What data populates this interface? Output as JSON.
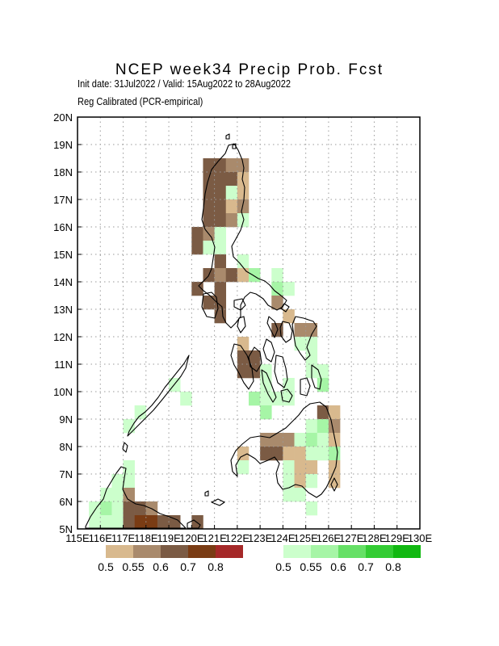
{
  "title": "NCEP  week34  Precip  Prob.  Fcst",
  "subtitle1": "Init date: 31Jul2022 / Valid: 15Aug2022 to 28Aug2022",
  "subtitle2": "Reg Calibrated (PCR-empirical)",
  "axes": {
    "lon_labels": [
      "115E",
      "116E",
      "117E",
      "118E",
      "119E",
      "120E",
      "121E",
      "122E",
      "123E",
      "124E",
      "125E",
      "126E",
      "127E",
      "128E",
      "129E",
      "130E"
    ],
    "lat_labels": [
      "5N",
      "6N",
      "7N",
      "8N",
      "9N",
      "10N",
      "11N",
      "12N",
      "13N",
      "14N",
      "15N",
      "16N",
      "17N",
      "18N",
      "19N",
      "20N"
    ],
    "lon_range": [
      115,
      130
    ],
    "lat_range": [
      5,
      20
    ],
    "grid": "dotted"
  },
  "legend": {
    "dry": {
      "colors": [
        "#d8b98e",
        "#a98a6c",
        "#7b5b44",
        "#7a3c14",
        "#a52828"
      ],
      "labels": [
        "0.5",
        "0.55",
        "0.6",
        "0.7",
        "0.8"
      ]
    },
    "wet": {
      "colors": [
        "#ccffcc",
        "#a6f5a6",
        "#66e066",
        "#33cc33",
        "#11b811"
      ],
      "labels": [
        "0.5",
        "0.55",
        "0.6",
        "0.7",
        "0.8"
      ]
    }
  },
  "chart_data": {
    "type": "heatmap",
    "cell_size_deg": 0.5,
    "categories_note": "d1-d4 below normal prob bins, w1-w3 above normal prob bins",
    "cells": [
      {
        "lon": 120.5,
        "lat": 18.0,
        "c": "d3"
      },
      {
        "lon": 121.0,
        "lat": 18.0,
        "c": "d3"
      },
      {
        "lon": 121.5,
        "lat": 18.0,
        "c": "d2"
      },
      {
        "lon": 122.0,
        "lat": 18.0,
        "c": "d2"
      },
      {
        "lon": 120.5,
        "lat": 17.5,
        "c": "d3"
      },
      {
        "lon": 121.0,
        "lat": 17.5,
        "c": "d3"
      },
      {
        "lon": 121.5,
        "lat": 17.5,
        "c": "d3"
      },
      {
        "lon": 122.0,
        "lat": 17.5,
        "c": "d1"
      },
      {
        "lon": 120.5,
        "lat": 17.0,
        "c": "d3"
      },
      {
        "lon": 121.0,
        "lat": 17.0,
        "c": "d3"
      },
      {
        "lon": 121.5,
        "lat": 17.0,
        "c": "w1"
      },
      {
        "lon": 122.0,
        "lat": 17.0,
        "c": "d1"
      },
      {
        "lon": 120.5,
        "lat": 16.5,
        "c": "d3"
      },
      {
        "lon": 121.0,
        "lat": 16.5,
        "c": "d3"
      },
      {
        "lon": 121.5,
        "lat": 16.5,
        "c": "d1"
      },
      {
        "lon": 122.0,
        "lat": 16.5,
        "c": "d2"
      },
      {
        "lon": 120.5,
        "lat": 16.0,
        "c": "d3"
      },
      {
        "lon": 121.0,
        "lat": 16.0,
        "c": "d3"
      },
      {
        "lon": 121.5,
        "lat": 16.0,
        "c": "d2"
      },
      {
        "lon": 122.0,
        "lat": 16.0,
        "c": "w1"
      },
      {
        "lon": 120.0,
        "lat": 15.5,
        "c": "d3"
      },
      {
        "lon": 120.5,
        "lat": 15.5,
        "c": "d2"
      },
      {
        "lon": 121.0,
        "lat": 15.5,
        "c": "w1"
      },
      {
        "lon": 120.0,
        "lat": 15.0,
        "c": "d3"
      },
      {
        "lon": 120.5,
        "lat": 15.0,
        "c": "w1"
      },
      {
        "lon": 121.0,
        "lat": 15.0,
        "c": "w1"
      },
      {
        "lon": 121.0,
        "lat": 14.5,
        "c": "d3"
      },
      {
        "lon": 122.0,
        "lat": 14.5,
        "c": "w1"
      },
      {
        "lon": 120.5,
        "lat": 14.0,
        "c": "d3"
      },
      {
        "lon": 121.0,
        "lat": 14.0,
        "c": "d2"
      },
      {
        "lon": 121.5,
        "lat": 14.0,
        "c": "d3"
      },
      {
        "lon": 122.0,
        "lat": 14.0,
        "c": "d1"
      },
      {
        "lon": 122.5,
        "lat": 14.0,
        "c": "w2"
      },
      {
        "lon": 123.5,
        "lat": 14.0,
        "c": "w1"
      },
      {
        "lon": 120.0,
        "lat": 13.5,
        "c": "d3"
      },
      {
        "lon": 121.0,
        "lat": 13.5,
        "c": "d3"
      },
      {
        "lon": 123.5,
        "lat": 13.5,
        "c": "w2"
      },
      {
        "lon": 124.0,
        "lat": 13.5,
        "c": "w1"
      },
      {
        "lon": 120.5,
        "lat": 13.0,
        "c": "d3"
      },
      {
        "lon": 121.0,
        "lat": 13.0,
        "c": "d3"
      },
      {
        "lon": 123.5,
        "lat": 13.0,
        "c": "d2"
      },
      {
        "lon": 121.0,
        "lat": 12.5,
        "c": "d3"
      },
      {
        "lon": 124.0,
        "lat": 12.5,
        "c": "d1"
      },
      {
        "lon": 123.5,
        "lat": 12.0,
        "c": "d3"
      },
      {
        "lon": 124.5,
        "lat": 12.0,
        "c": "d2"
      },
      {
        "lon": 125.0,
        "lat": 12.0,
        "c": "d2"
      },
      {
        "lon": 122.0,
        "lat": 11.5,
        "c": "d1"
      },
      {
        "lon": 124.5,
        "lat": 11.5,
        "c": "w1"
      },
      {
        "lon": 125.0,
        "lat": 11.5,
        "c": "w1"
      },
      {
        "lon": 122.0,
        "lat": 11.0,
        "c": "d3"
      },
      {
        "lon": 122.5,
        "lat": 11.0,
        "c": "d3"
      },
      {
        "lon": 125.0,
        "lat": 11.0,
        "c": "w1"
      },
      {
        "lon": 122.0,
        "lat": 10.5,
        "c": "d3"
      },
      {
        "lon": 122.5,
        "lat": 10.5,
        "c": "d3"
      },
      {
        "lon": 123.0,
        "lat": 10.5,
        "c": "w1"
      },
      {
        "lon": 125.0,
        "lat": 10.5,
        "c": "w1"
      },
      {
        "lon": 125.5,
        "lat": 10.5,
        "c": "w1"
      },
      {
        "lon": 123.0,
        "lat": 10.0,
        "c": "w1"
      },
      {
        "lon": 124.0,
        "lat": 10.0,
        "c": "w1"
      },
      {
        "lon": 125.5,
        "lat": 10.0,
        "c": "w2"
      },
      {
        "lon": 122.5,
        "lat": 9.5,
        "c": "w2"
      },
      {
        "lon": 123.0,
        "lat": 9.5,
        "c": "w1"
      },
      {
        "lon": 123.5,
        "lat": 9.5,
        "c": "w1"
      },
      {
        "lon": 124.0,
        "lat": 9.5,
        "c": "w1"
      },
      {
        "lon": 123.0,
        "lat": 9.0,
        "c": "w2"
      },
      {
        "lon": 125.5,
        "lat": 9.0,
        "c": "d3"
      },
      {
        "lon": 126.0,
        "lat": 9.0,
        "c": "d1"
      },
      {
        "lon": 125.0,
        "lat": 8.5,
        "c": "w1"
      },
      {
        "lon": 125.5,
        "lat": 8.5,
        "c": "w2"
      },
      {
        "lon": 126.0,
        "lat": 8.5,
        "c": "d2"
      },
      {
        "lon": 123.0,
        "lat": 8.0,
        "c": "d2"
      },
      {
        "lon": 123.5,
        "lat": 8.0,
        "c": "d2"
      },
      {
        "lon": 124.0,
        "lat": 8.0,
        "c": "d2"
      },
      {
        "lon": 124.5,
        "lat": 8.0,
        "c": "w1"
      },
      {
        "lon": 125.0,
        "lat": 8.0,
        "c": "w2"
      },
      {
        "lon": 125.5,
        "lat": 8.0,
        "c": "w1"
      },
      {
        "lon": 126.0,
        "lat": 8.0,
        "c": "d1"
      },
      {
        "lon": 122.0,
        "lat": 7.5,
        "c": "d1"
      },
      {
        "lon": 123.0,
        "lat": 7.5,
        "c": "d3"
      },
      {
        "lon": 123.5,
        "lat": 7.5,
        "c": "d3"
      },
      {
        "lon": 124.0,
        "lat": 7.5,
        "c": "d1"
      },
      {
        "lon": 124.5,
        "lat": 7.5,
        "c": "d1"
      },
      {
        "lon": 125.0,
        "lat": 7.5,
        "c": "w1"
      },
      {
        "lon": 125.5,
        "lat": 7.5,
        "c": "w1"
      },
      {
        "lon": 126.0,
        "lat": 7.5,
        "c": "w2"
      },
      {
        "lon": 122.0,
        "lat": 7.0,
        "c": "w1"
      },
      {
        "lon": 124.0,
        "lat": 7.0,
        "c": "w1"
      },
      {
        "lon": 124.5,
        "lat": 7.0,
        "c": "d1"
      },
      {
        "lon": 125.0,
        "lat": 7.0,
        "c": "d1"
      },
      {
        "lon": 126.0,
        "lat": 7.0,
        "c": "d1"
      },
      {
        "lon": 124.0,
        "lat": 6.5,
        "c": "w1"
      },
      {
        "lon": 124.5,
        "lat": 6.5,
        "c": "d1"
      },
      {
        "lon": 125.0,
        "lat": 6.5,
        "c": "w1"
      },
      {
        "lon": 126.0,
        "lat": 6.5,
        "c": "d1"
      },
      {
        "lon": 124.0,
        "lat": 6.0,
        "c": "w1"
      },
      {
        "lon": 124.5,
        "lat": 6.0,
        "c": "w1"
      },
      {
        "lon": 125.0,
        "lat": 5.5,
        "c": "w1"
      },
      {
        "lon": 117.0,
        "lat": 7.0,
        "c": "w1"
      },
      {
        "lon": 116.5,
        "lat": 6.5,
        "c": "w1"
      },
      {
        "lon": 117.0,
        "lat": 6.5,
        "c": "w1"
      },
      {
        "lon": 116.0,
        "lat": 6.0,
        "c": "w1"
      },
      {
        "lon": 116.5,
        "lat": 6.0,
        "c": "w1"
      },
      {
        "lon": 117.0,
        "lat": 6.0,
        "c": "d2"
      },
      {
        "lon": 115.5,
        "lat": 5.5,
        "c": "w1"
      },
      {
        "lon": 116.0,
        "lat": 5.5,
        "c": "w2"
      },
      {
        "lon": 116.5,
        "lat": 5.5,
        "c": "w1"
      },
      {
        "lon": 117.0,
        "lat": 5.5,
        "c": "d3"
      },
      {
        "lon": 117.5,
        "lat": 5.5,
        "c": "d3"
      },
      {
        "lon": 118.0,
        "lat": 5.5,
        "c": "d2"
      },
      {
        "lon": 115.5,
        "lat": 5.0,
        "c": "w1"
      },
      {
        "lon": 116.0,
        "lat": 5.0,
        "c": "w1"
      },
      {
        "lon": 116.5,
        "lat": 5.0,
        "c": "w1"
      },
      {
        "lon": 117.0,
        "lat": 5.0,
        "c": "d3"
      },
      {
        "lon": 117.5,
        "lat": 5.0,
        "c": "d4"
      },
      {
        "lon": 118.0,
        "lat": 5.0,
        "c": "d4"
      },
      {
        "lon": 118.5,
        "lat": 5.0,
        "c": "d3"
      },
      {
        "lon": 119.0,
        "lat": 5.0,
        "c": "d3"
      },
      {
        "lon": 120.0,
        "lat": 5.0,
        "c": "d3"
      },
      {
        "lon": 119.5,
        "lat": 9.5,
        "c": "w1"
      },
      {
        "lon": 119.0,
        "lat": 10.0,
        "c": "w1"
      },
      {
        "lon": 117.0,
        "lat": 8.5,
        "c": "w1"
      },
      {
        "lon": 117.5,
        "lat": 9.0,
        "c": "w1"
      }
    ]
  },
  "coastlines": [
    "M 279,190 L 283,180 L 290,178 L 295,186 L 300,198 L 302,208 L 300,222 L 303,232 L 302,248 L 299,262 L 302,272 L 298,285 L 292,296 L 287,305 L 289,318 L 297,326 L 305,336 L 312,340 L 320,345 L 328,348 L 334,353 L 340,360 L 348,366 L 355,372 L 350,380 L 343,384 L 332,378 L 326,370 L 317,364 L 310,362 L 303,368 L 298,378 L 298,392 L 292,400 L 286,406 L 280,400 L 276,392 L 275,380 L 268,374 L 260,366 L 252,360 L 246,354 L 252,348 L 258,342 L 262,333 L 264,320 L 266,306 L 262,294 L 254,284 L 250,272 L 252,258 L 254,240 L 257,226 L 262,210 L 270,200 Z",
    "M 252,364 L 262,362 L 268,368 L 270,382 L 266,394 L 256,392 L 250,380 Z",
    "M 290,372 L 300,370 L 304,378 L 298,384 L 290,380 Z",
    "M 296,394 L 302,392 L 304,404 L 298,412 L 294,404 Z",
    "M 352,376 L 358,380 L 354,386 L 348,382 Z",
    "M 333,392 L 340,398 L 344,408 L 340,418 L 336,410 L 331,400 Z",
    "M 350,398 L 358,400 L 362,410 L 360,420 L 354,424 L 348,416 L 347,406 Z",
    "M 366,392 L 376,394 L 388,398 L 392,404 L 386,414 L 380,430 L 384,440 L 378,446 L 372,438 L 366,428 L 364,416 L 362,402 Z",
    "M 330,420 L 336,424 L 340,436 L 336,448 L 330,444 L 326,432 Z",
    "M 315,430 L 322,436 L 324,450 L 318,460 L 310,454 L 308,442 Z",
    "M 342,440 L 350,442 L 354,456 L 356,470 L 352,480 L 344,474 L 340,460 Z",
    "M 290,426 L 298,428 L 306,440 L 312,456 L 314,472 L 308,482 L 302,474 L 296,462 L 290,452 L 286,440 Z",
    "M 324,458 L 330,462 L 336,476 L 342,492 L 338,498 L 332,488 L 326,474 Z",
    "M 348,484 L 356,482 L 362,490 L 358,498 L 350,496 Z",
    "M 372,470 L 380,468 L 384,478 L 380,490 L 372,488 Z",
    "M 386,452 L 394,458 L 398,470 L 396,482 L 390,480 L 386,468 Z",
    "M 384,500 L 396,498 L 404,504 L 410,520 L 414,540 L 418,560 L 416,578 L 410,592 L 404,604 L 398,612 L 392,616 L 382,610 L 374,602 L 366,600 L 358,604 L 350,606 L 344,598 L 342,586 L 346,574 L 340,566 L 332,570 L 322,574 L 316,568 L 306,562 L 298,566 L 292,576 L 294,590 L 288,584 L 286,570 L 292,558 L 300,550 L 310,542 L 322,540 L 334,542 L 344,536 L 354,530 L 362,522 L 370,514 L 376,506 Z",
    "M 414,592 L 418,600 L 414,608 L 410,600 Z",
    "M 234,440 L 228,450 L 220,460 L 212,470 L 204,480 L 196,492 L 188,502 L 180,510 L 172,516 L 166,524 L 160,534 L 158,540 L 164,534 L 172,526 L 180,518 L 190,508 L 200,496 L 208,486 L 216,476 L 224,466 L 230,456 Z",
    "M 154,548 L 158,552 L 156,560 L 152,556 Z",
    "M 106,652 L 112,640 L 120,628 L 128,618 L 132,606 L 138,596 L 144,586 L 150,578 L 156,580 L 154,592 L 152,606 L 158,618 L 168,624 L 178,626 L 188,630 L 198,636 L 210,640 L 220,644 L 226,650 L 230,654 L 106,654 Z",
    "M 232,648 L 240,644 L 248,650 L 246,654 L 232,654 Z",
    "M 262,622 L 270,618 L 278,622 L 272,626 Z",
    "M 254,610 L 258,608 L 258,614 L 254,614 Z",
    "M 280,168 L 284,166 L 284,172 L 280,172 Z",
    "M 288,180 L 292,178 L 292,184 L 288,184 Z"
  ]
}
